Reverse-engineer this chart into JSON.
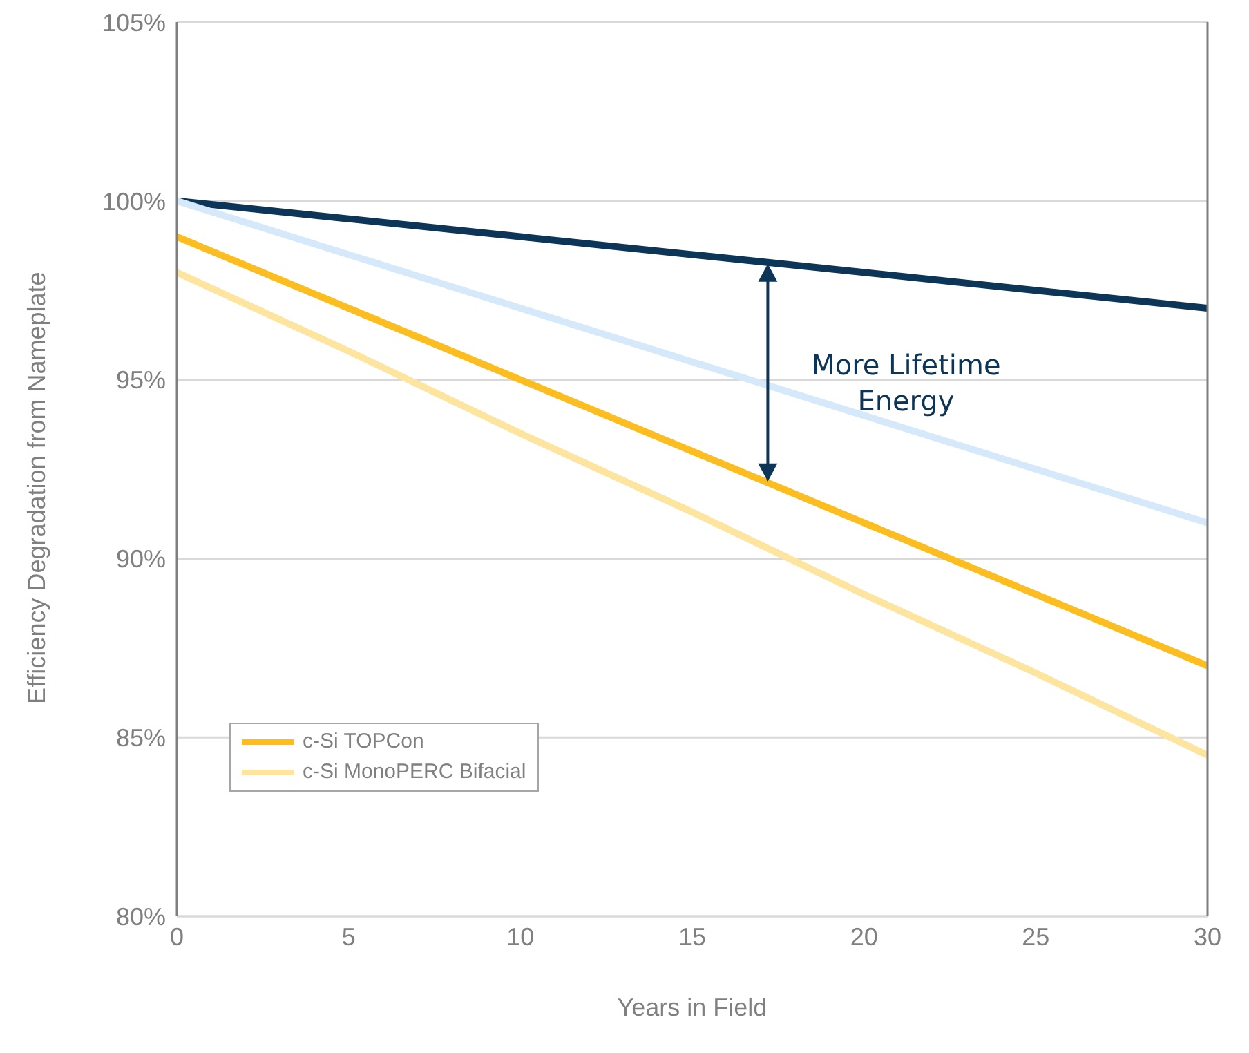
{
  "chart_data": {
    "type": "line",
    "xlabel": "Years in Field",
    "ylabel": "Efficiency Degradation from Nameplate",
    "x": [
      0,
      5,
      10,
      15,
      20,
      25,
      30
    ],
    "series": [
      {
        "color": "#0d3558",
        "values": [
          100,
          99.5,
          99,
          98.5,
          98,
          97.5,
          97
        ]
      },
      {
        "color": "#d6e9fb",
        "values": [
          100,
          98.5,
          97,
          95.5,
          94,
          92.5,
          91
        ]
      },
      {
        "name": "c-Si TOPCon",
        "color": "#fbbd1f",
        "values": [
          99,
          97,
          95,
          93,
          91,
          89,
          87
        ]
      },
      {
        "name": "c-Si MonoPERC Bifacial",
        "color": "#fde49f",
        "values": [
          98,
          95.8,
          93.5,
          91.3,
          89,
          86.8,
          84.5
        ]
      }
    ],
    "xlim": [
      0,
      30
    ],
    "xticks": [
      0,
      5,
      10,
      15,
      20,
      25,
      30
    ],
    "ylim": [
      80,
      105
    ],
    "yticks": [
      {
        "value": 80,
        "label": "80%"
      },
      {
        "value": 85,
        "label": "85%"
      },
      {
        "value": 90,
        "label": "90%"
      },
      {
        "value": 95,
        "label": "95%"
      },
      {
        "value": 100,
        "label": "100%"
      },
      {
        "value": 105,
        "label": "105%"
      }
    ],
    "grid": "y",
    "legend": "bottom left",
    "marker": "none",
    "line_style": "solid",
    "annotations": [
      {
        "text": "More Lifetime Energy",
        "x": 17.2,
        "y": 95
      }
    ]
  }
}
